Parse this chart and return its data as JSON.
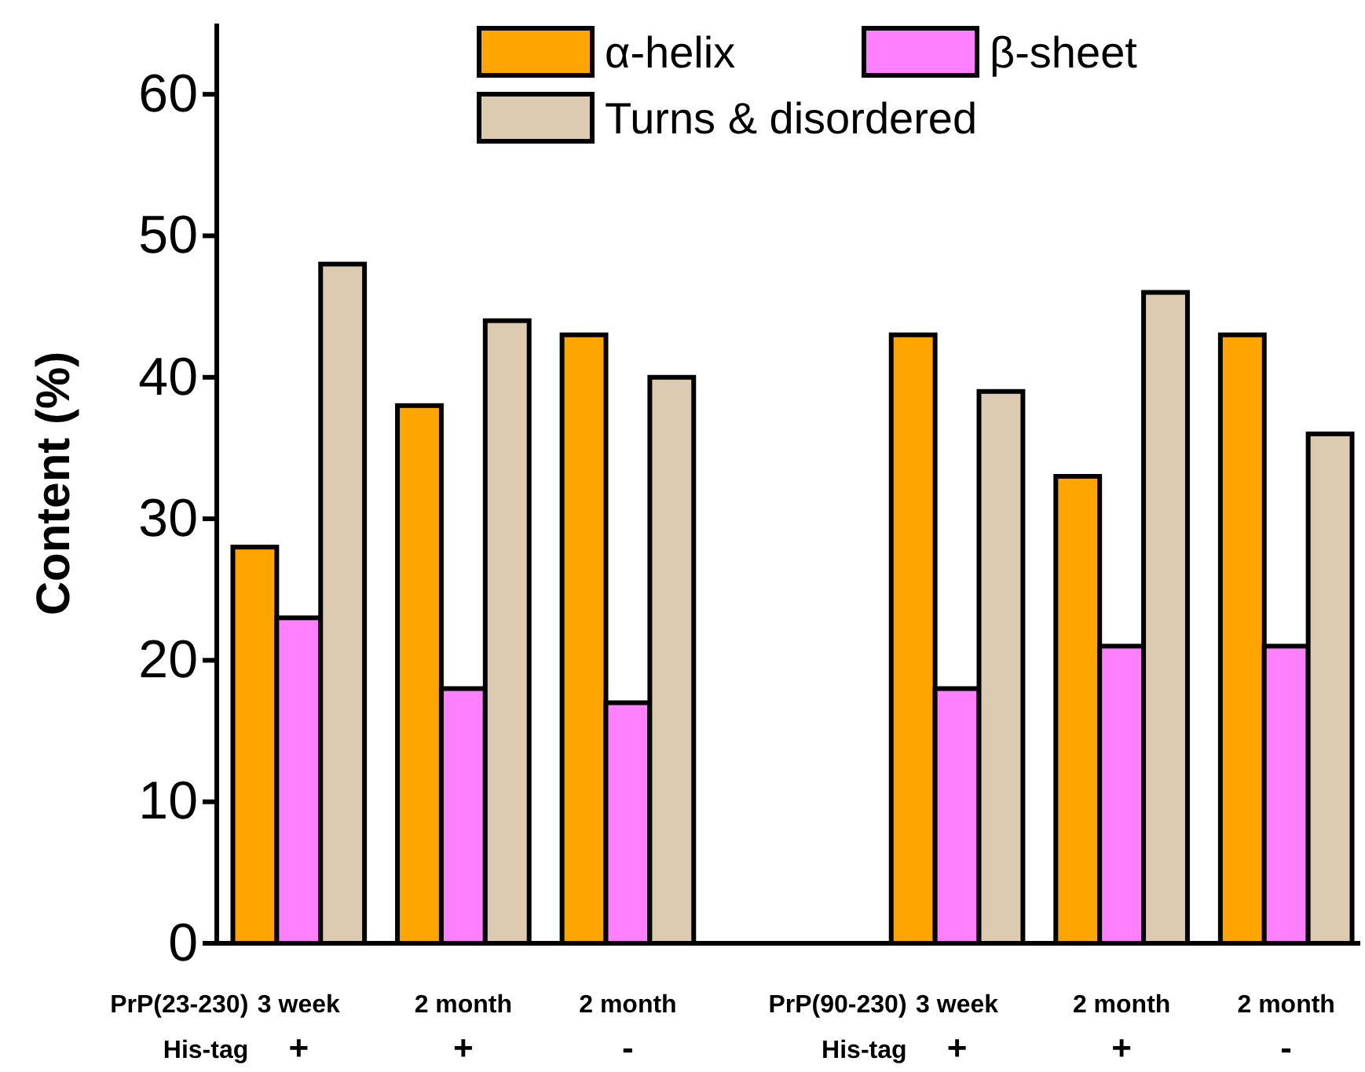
{
  "chart_data": {
    "type": "bar",
    "ylabel": "Content (%)",
    "categories": [
      "3 week\n+",
      "2 month\n+",
      "2 month\n-",
      null,
      "3 week\n+",
      "2 month\n+",
      "2 month\n-"
    ],
    "series": [
      {
        "name": "α-helix",
        "color": "#ffa500",
        "values": [
          28,
          38,
          43,
          null,
          43,
          33,
          43
        ]
      },
      {
        "name": "β-sheet",
        "color": "#ff80ff",
        "values": [
          23,
          18,
          17,
          null,
          18,
          21,
          21
        ]
      },
      {
        "name": "Turns & disordered",
        "color": "#dccbb0",
        "values": [
          48,
          44,
          40,
          null,
          39,
          46,
          36
        ]
      }
    ],
    "annotations": [
      "PrP(23-230)",
      "His-tag",
      "PrP(90-230)",
      "His-tag"
    ],
    "ylim": [
      0,
      65
    ],
    "yticks": [
      0,
      10,
      20,
      30,
      40,
      50,
      60
    ],
    "grid": false,
    "legend": "top"
  }
}
